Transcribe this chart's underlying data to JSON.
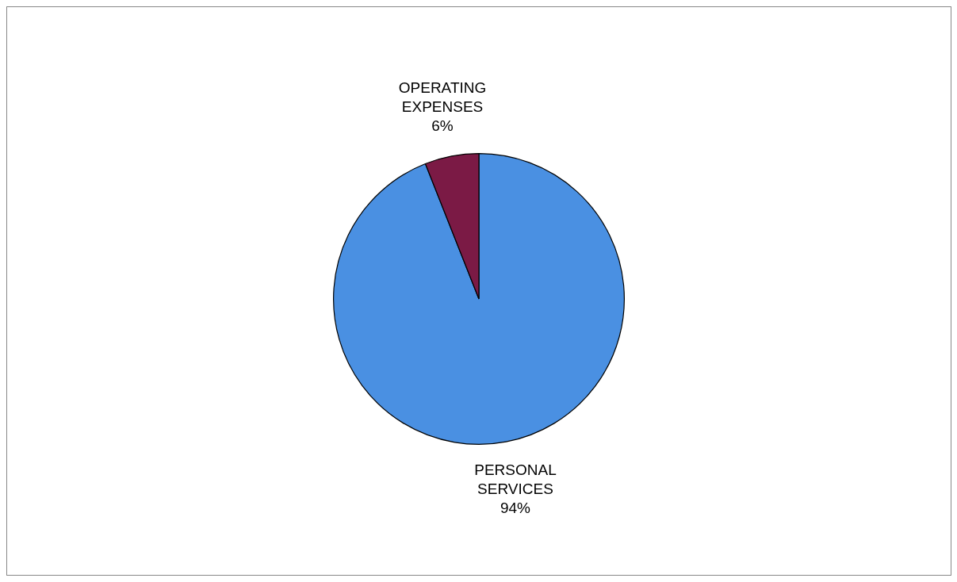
{
  "chart_data": {
    "type": "pie",
    "categories": [
      "PERSONAL SERVICES",
      "OPERATING EXPENSES"
    ],
    "values": [
      94,
      6
    ],
    "colors": [
      "#4a90e2",
      "#7b1a45"
    ],
    "value_labels": [
      "94%",
      "6%"
    ],
    "legend": false
  }
}
